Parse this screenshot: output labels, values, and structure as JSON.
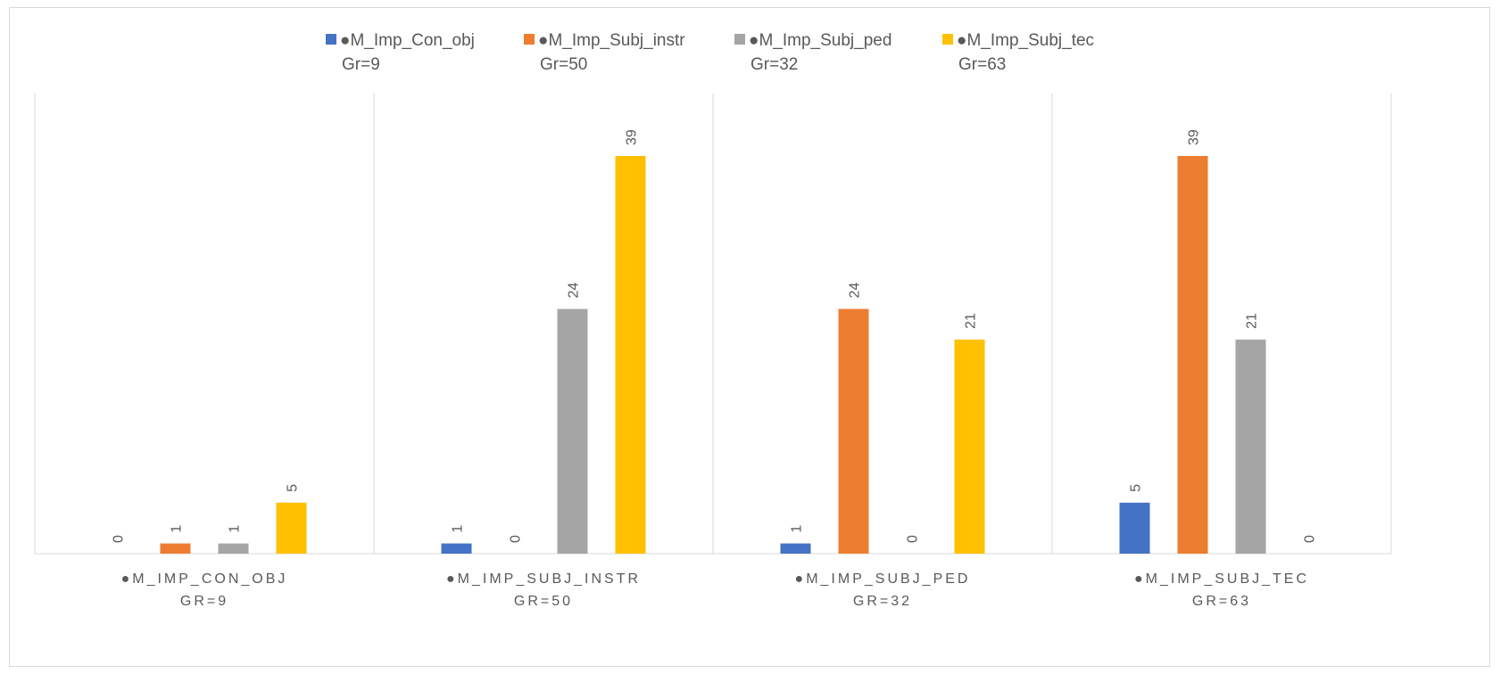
{
  "chart_data": {
    "type": "bar",
    "categories": [
      {
        "line1": "●M_IMP_CON_OBJ",
        "line2": "GR=9"
      },
      {
        "line1": "●M_IMP_SUBJ_INSTR",
        "line2": "GR=50"
      },
      {
        "line1": "●M_IMP_SUBJ_PED",
        "line2": "GR=32"
      },
      {
        "line1": "●M_IMP_SUBJ_TEC",
        "line2": "GR=63"
      }
    ],
    "series": [
      {
        "name": "●M_Imp_Con_obj",
        "sub": "Gr=9",
        "color": "#4472C4",
        "values": [
          0,
          1,
          1,
          5
        ]
      },
      {
        "name": "●M_Imp_Subj_instr",
        "sub": "Gr=50",
        "color": "#ED7D31",
        "values": [
          1,
          0,
          24,
          39
        ]
      },
      {
        "name": "●M_Imp_Subj_ped",
        "sub": "Gr=32",
        "color": "#A5A5A5",
        "values": [
          1,
          24,
          0,
          21
        ]
      },
      {
        "name": "●M_Imp_Subj_tec",
        "sub": "Gr=63",
        "color": "#FFC000",
        "values": [
          5,
          39,
          21,
          0
        ]
      }
    ],
    "ylim": [
      0,
      45
    ],
    "grid": false,
    "legend_position": "top",
    "data_labels": true,
    "title": "",
    "xlabel": "",
    "ylabel": ""
  }
}
